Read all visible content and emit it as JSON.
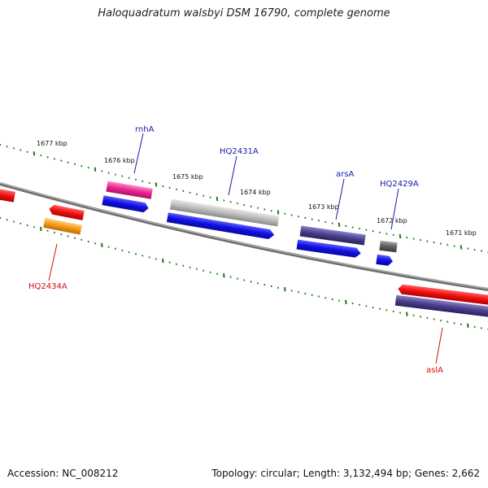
{
  "title": "Haloquadratum walsbyi DSM 16790, complete genome",
  "footer": {
    "accession": "Accession: NC_008212",
    "summary": "Topology: circular; Length: 3,132,494 bp; Genes: 2,662"
  },
  "scale_labels": [
    "1677 kbp",
    "1676 kbp",
    "1675 kbp",
    "1674 kbp",
    "1673 kbp",
    "1672 kbp",
    "1671 kbp"
  ],
  "gene_labels": {
    "rnhA": "rnhA",
    "HQ2431A": "HQ2431A",
    "arsA": "arsA",
    "HQ2429A": "HQ2429A",
    "HQ2434A": "HQ2434A",
    "aslA": "aslA"
  },
  "colors": {
    "backbone": "#808080",
    "tick": "#1a7a1a",
    "label_blue": "#1a1aa8",
    "label_red": "#d01010",
    "gene_blue": "#1010e0",
    "gene_red": "#ee1010",
    "gene_pink": "#e8258f",
    "gene_gray": "#b8b8b8",
    "gene_navy": "#4a3f8a",
    "gene_dark": "#606060",
    "gene_orange": "#f39a1a"
  }
}
